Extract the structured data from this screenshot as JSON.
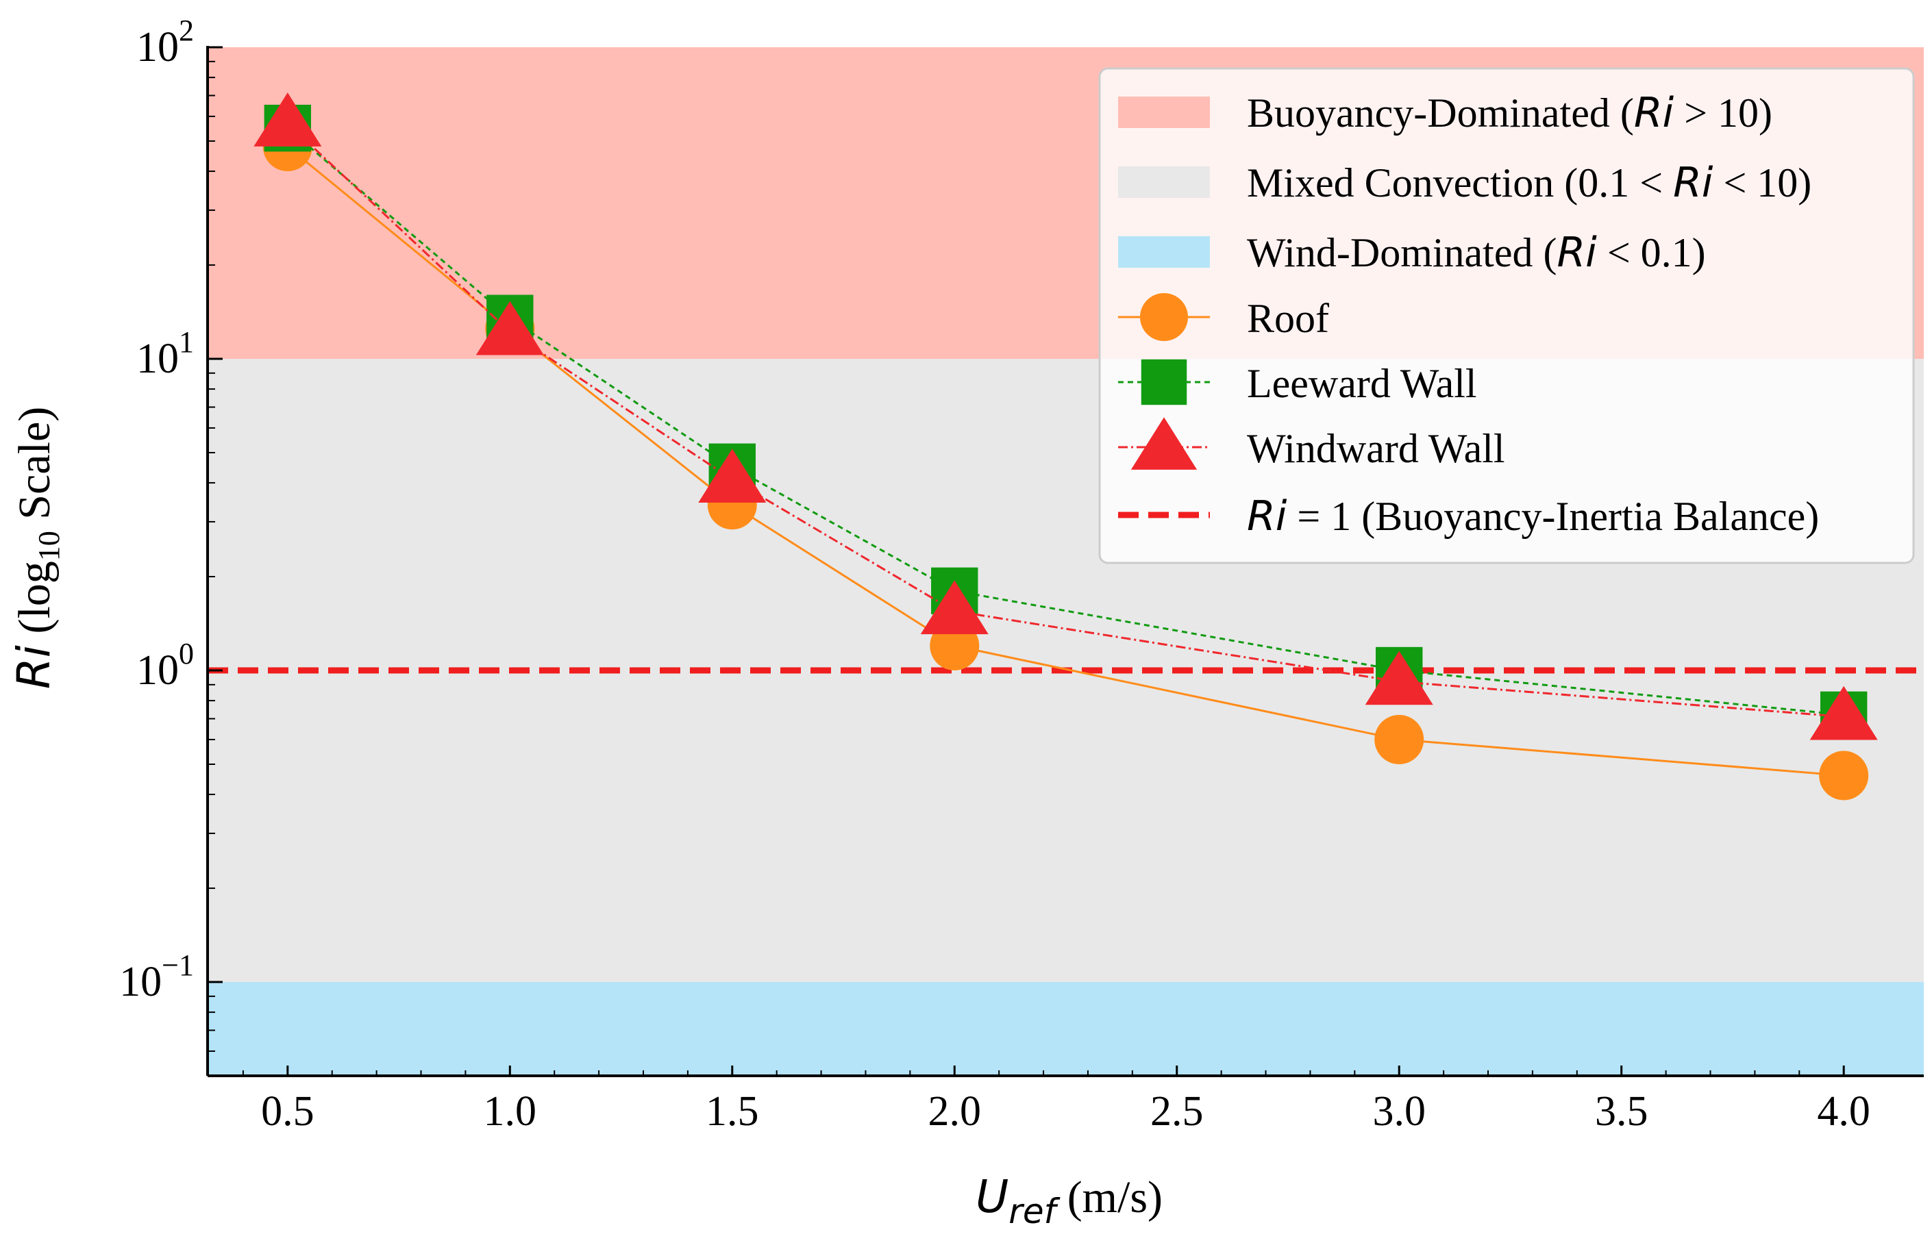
{
  "chart_data": {
    "type": "line",
    "x_scale": "linear",
    "y_scale": "log10",
    "xlim": [
      0.32,
      4.18
    ],
    "ylim": [
      0.05,
      100
    ],
    "grid": false,
    "legend_position": "top-right",
    "x_ticks": [
      0.5,
      1.0,
      1.5,
      2.0,
      2.5,
      3.0,
      3.5,
      4.0
    ],
    "x_tick_labels": [
      "0.5",
      "1.0",
      "1.5",
      "2.0",
      "2.5",
      "3.0",
      "3.5",
      "4.0"
    ],
    "y_ticks": [
      {
        "value": 100,
        "base": "10",
        "exp": "2"
      },
      {
        "value": 10,
        "base": "10",
        "exp": "1"
      },
      {
        "value": 1,
        "base": "10",
        "exp": "0"
      },
      {
        "value": 0.1,
        "base": "10",
        "exp": "−1"
      }
    ],
    "xlabel": {
      "main": "U",
      "sub": "ref",
      "units": " (m/s)"
    },
    "ylabel": {
      "main": "Ri",
      "pre": " (log",
      "sub": "10",
      "post": " Scale)"
    },
    "regions": [
      {
        "name": "Buoyancy-Dominated",
        "from": 10,
        "to": 100,
        "color": "#ffbdb5",
        "legend": {
          "pre": "Buoyancy-Dominated (",
          "var": "Ri",
          "post": " > 10)"
        }
      },
      {
        "name": "Mixed Convection",
        "from": 0.1,
        "to": 10,
        "color": "#e8e8e8",
        "legend": {
          "pre": "Mixed Convection (0.1 < ",
          "var": "Ri",
          "post": " < 10)"
        }
      },
      {
        "name": "Wind-Dominated",
        "from": 0.05,
        "to": 0.1,
        "color": "#b5e4f8",
        "legend": {
          "pre": "Wind-Dominated (",
          "var": "Ri",
          "post": " < 0.1)"
        }
      }
    ],
    "series": [
      {
        "name": "Roof",
        "label": "Roof",
        "marker": "circle",
        "color": "#ff8c1a",
        "dash": "",
        "x": [
          0.5,
          1.0,
          1.5,
          2.0,
          3.0,
          4.0
        ],
        "y": [
          48,
          12.5,
          3.4,
          1.2,
          0.6,
          0.46
        ]
      },
      {
        "name": "Leeward Wall",
        "label": "Leeward Wall",
        "marker": "square",
        "color": "#119b11",
        "dash": "8,6",
        "x": [
          0.5,
          1.0,
          1.5,
          2.0,
          3.0,
          4.0
        ],
        "y": [
          55,
          13.5,
          4.5,
          1.8,
          1.0,
          0.72
        ]
      },
      {
        "name": "Windward Wall",
        "label": "Windward Wall",
        "marker": "triangle",
        "color": "#f0282d",
        "dash": "14,5,3,5",
        "x": [
          0.5,
          1.0,
          1.5,
          2.0,
          3.0,
          4.0
        ],
        "y": [
          57,
          12.2,
          4.1,
          1.55,
          0.92,
          0.71
        ]
      }
    ],
    "reference_line": {
      "y": 1,
      "color": "#f01e1e",
      "legend": {
        "var": "Ri",
        "post": " = 1 (Buoyancy-Inertia Balance)"
      }
    }
  }
}
